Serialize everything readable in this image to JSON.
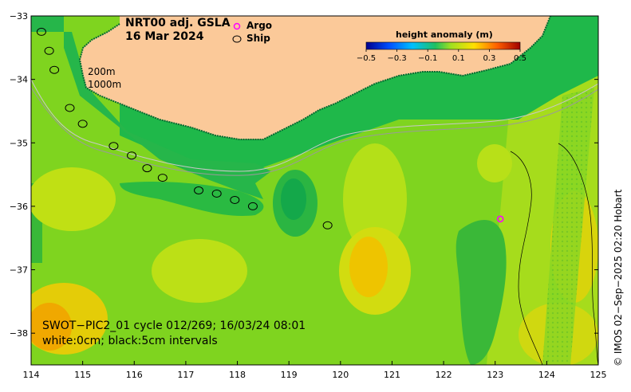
{
  "title": {
    "line1": "NRT00 adj. GSLA",
    "line2": "16 Mar 2024"
  },
  "legend": {
    "argo_label": "Argo",
    "ship_label": "Ship",
    "argo_color": "#ff00ff",
    "ship_color": "#000000"
  },
  "colorbar": {
    "title": "height anomaly (m)",
    "ticks": [
      "−0.5",
      "−0.3",
      "−0.1",
      "0.1",
      "0.3",
      "0.5"
    ],
    "range": [
      -0.5,
      0.5
    ]
  },
  "isobaths": {
    "shallow": "200m",
    "deep": "1000m"
  },
  "satellite": {
    "pass": "SWOT−PIC2_01 cycle 012/269; 16/03/24 08:01",
    "contours": "white:0cm; black:5cm intervals"
  },
  "credit": "© IMOS 02−Sep−2025 02:20 Hobart",
  "axes": {
    "x_ticks": [
      "114",
      "115",
      "116",
      "117",
      "118",
      "119",
      "120",
      "121",
      "122",
      "123",
      "124",
      "125"
    ],
    "y_ticks": [
      "−33",
      "−34",
      "−35",
      "−36",
      "−37",
      "−38"
    ],
    "lon_range": [
      114,
      125
    ],
    "lat_range": [
      -38.5,
      -33
    ]
  },
  "colors": {
    "land": "#fbc999",
    "ocean_base": "#7fd41f",
    "shelf": "#1fb84a",
    "low": "#2db83a",
    "high": "#f0c000",
    "peak": "#f08a00"
  },
  "argo_float": {
    "lon": 123.1,
    "lat": -36.2
  },
  "ship_track": [
    [
      114.2,
      -33.25
    ],
    [
      114.35,
      -33.55
    ],
    [
      114.45,
      -33.85
    ],
    [
      114.75,
      -34.45
    ],
    [
      115.0,
      -34.7
    ],
    [
      115.6,
      -35.05
    ],
    [
      115.95,
      -35.2
    ],
    [
      116.25,
      -35.4
    ],
    [
      116.55,
      -35.55
    ],
    [
      117.25,
      -35.75
    ],
    [
      117.6,
      -35.8
    ],
    [
      117.95,
      -35.9
    ],
    [
      118.3,
      -36.0
    ],
    [
      119.75,
      -36.3
    ]
  ]
}
